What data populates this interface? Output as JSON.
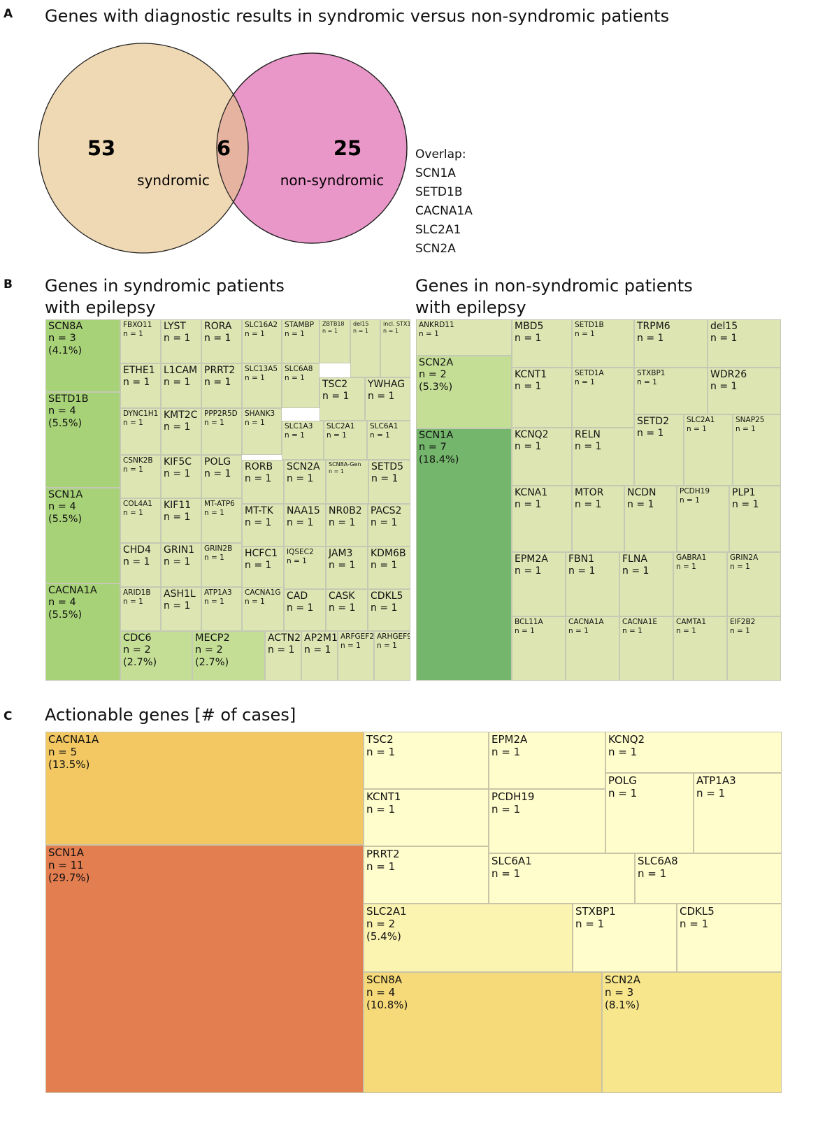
{
  "panels": {
    "a": {
      "letter": "A",
      "title": "Genes with diagnostic results in syndromic versus non-syndromic patients",
      "venn": {
        "left_count": "53",
        "overlap_count": "6",
        "right_count": "25",
        "left_label": "syndromic",
        "right_label": "non-syndromic",
        "left_color": "#efd8b4",
        "right_color": "#e996c8",
        "overlap_color": "#e6b3a0"
      },
      "overlap_title": "Overlap:",
      "overlap_genes": [
        "SCN1A",
        "SETD1B",
        "CACNA1A",
        "SLC2A1",
        "SCN2A"
      ]
    },
    "b": {
      "letter": "B",
      "left_title": "Genes in syndromic patients\nwith epilepsy",
      "right_title": "Genes in non-syndromic patients\nwith epilepsy"
    },
    "c": {
      "letter": "C",
      "title": "Actionable genes [# of cases]"
    }
  },
  "colors": {
    "light_green": "#dde6b3",
    "mid_green": "#a8d277",
    "mid_green2": "#c4de96",
    "dark_green": "#74b66b",
    "pale_yellow": "#fffdcc",
    "yellow": "#fbf3b0",
    "yellow_mid": "#f8e68d",
    "yellow_gold": "#f6d978",
    "orange": "#f3c862",
    "red_orange": "#e37e50"
  },
  "treemaps": {
    "syndromic": [
      {
        "gene": "SCN8A",
        "n": "n = 3",
        "pct": "(4.1%)",
        "tone": "mid_green"
      },
      {
        "gene": "SETD1B",
        "n": "n = 4",
        "pct": "(5.5%)",
        "tone": "mid_green"
      },
      {
        "gene": "SCN1A",
        "n": "n = 4",
        "pct": "(5.5%)",
        "tone": "mid_green"
      },
      {
        "gene": "CACNA1A",
        "n": "n = 4",
        "pct": "(5.5%)",
        "tone": "mid_green"
      },
      {
        "gene": "FBXO11",
        "n": "n = 1"
      },
      {
        "gene": "LYST",
        "n": "n = 1"
      },
      {
        "gene": "RORA",
        "n": "n = 1"
      },
      {
        "gene": "SLC16A2",
        "n": "n = 1"
      },
      {
        "gene": "STAMBP",
        "n": "n = 1"
      },
      {
        "gene": "ZBTB18",
        "n": "n = 1"
      },
      {
        "gene": "del15",
        "n": "n = 1"
      },
      {
        "gene": "incl. STX1B",
        "n": "n = 1"
      },
      {
        "gene": "ETHE1",
        "n": "n = 1"
      },
      {
        "gene": "L1CAM",
        "n": "n = 1"
      },
      {
        "gene": "PRRT2",
        "n": "n = 1"
      },
      {
        "gene": "SLC13A5",
        "n": "n = 1"
      },
      {
        "gene": "SLC6A8",
        "n": "n = 1"
      },
      {
        "gene": "TSC2",
        "n": "n = 1"
      },
      {
        "gene": "YWHAG",
        "n": "n = 1"
      },
      {
        "gene": "DYNC1H1",
        "n": "n = 1"
      },
      {
        "gene": "KMT2C",
        "n": "n = 1"
      },
      {
        "gene": "PPP2R5D",
        "n": "n = 1"
      },
      {
        "gene": "SHANK3",
        "n": "n = 1"
      },
      {
        "gene": "SLC1A3",
        "n": "n = 1"
      },
      {
        "gene": "SLC2A1",
        "n": "n = 1"
      },
      {
        "gene": "SLC6A1",
        "n": "n = 1"
      },
      {
        "gene": "CSNK2B",
        "n": "n = 1"
      },
      {
        "gene": "KIF5C",
        "n": "n = 1"
      },
      {
        "gene": "POLG",
        "n": "n = 1"
      },
      {
        "gene": "RORB",
        "n": "n = 1"
      },
      {
        "gene": "SCN2A",
        "n": "n = 1"
      },
      {
        "gene": "SCN8A-Gen",
        "n": "n = 1"
      },
      {
        "gene": "SETD5",
        "n": "n = 1"
      },
      {
        "gene": "COL4A1",
        "n": "n = 1"
      },
      {
        "gene": "KIF11",
        "n": "n = 1"
      },
      {
        "gene": "MT-ATP6",
        "n": "n = 1"
      },
      {
        "gene": "MT-TK",
        "n": "n = 1"
      },
      {
        "gene": "NAA15",
        "n": "n = 1"
      },
      {
        "gene": "NR0B2",
        "n": "n = 1"
      },
      {
        "gene": "PACS2",
        "n": "n = 1"
      },
      {
        "gene": "CHD4",
        "n": "n = 1"
      },
      {
        "gene": "GRIN1",
        "n": "n = 1"
      },
      {
        "gene": "GRIN2B",
        "n": "n = 1"
      },
      {
        "gene": "HCFC1",
        "n": "n = 1"
      },
      {
        "gene": "IQSEC2",
        "n": "n = 1"
      },
      {
        "gene": "JAM3",
        "n": "n = 1"
      },
      {
        "gene": "KDM6B",
        "n": "n = 1"
      },
      {
        "gene": "ARID1B",
        "n": "n = 1"
      },
      {
        "gene": "ASH1L",
        "n": "n = 1"
      },
      {
        "gene": "ATP1A3",
        "n": "n = 1"
      },
      {
        "gene": "CACNA1G",
        "n": "n = 1"
      },
      {
        "gene": "CAD",
        "n": "n = 1"
      },
      {
        "gene": "CASK",
        "n": "n = 1"
      },
      {
        "gene": "CDKL5",
        "n": "n = 1"
      },
      {
        "gene": "CDC6",
        "n": "n = 2",
        "pct": "(2.7%)",
        "tone": "mid_green2"
      },
      {
        "gene": "MECP2",
        "n": "n = 2",
        "pct": "(2.7%)",
        "tone": "mid_green2"
      },
      {
        "gene": "ACTN2",
        "n": "n = 1"
      },
      {
        "gene": "AP2M1",
        "n": "n = 1"
      },
      {
        "gene": "ARFGEF2",
        "n": "n = 1"
      },
      {
        "gene": "ARHGEF9",
        "n": "n = 1"
      }
    ],
    "nonsyndromic": [
      {
        "gene": "ANKRD11",
        "n": "n = 1"
      },
      {
        "gene": "SCN2A",
        "n": "n = 2",
        "pct": "(5.3%)",
        "tone": "mid_green2"
      },
      {
        "gene": "SCN1A",
        "n": "n = 7",
        "pct": "(18.4%)",
        "tone": "dark_green"
      },
      {
        "gene": "MBD5",
        "n": "n = 1"
      },
      {
        "gene": "SETD1B",
        "n": "n = 1"
      },
      {
        "gene": "TRPM6",
        "n": "n = 1"
      },
      {
        "gene": "del15",
        "n": "n = 1"
      },
      {
        "gene": "KCNT1",
        "n": "n = 1"
      },
      {
        "gene": "SETD1A",
        "n": "n = 1"
      },
      {
        "gene": "STXBP1",
        "n": "n = 1"
      },
      {
        "gene": "WDR26",
        "n": "n = 1"
      },
      {
        "gene": "KCNQ2",
        "n": "n = 1"
      },
      {
        "gene": "RELN",
        "n": "n = 1"
      },
      {
        "gene": "SETD2",
        "n": "n = 1"
      },
      {
        "gene": "SLC2A1",
        "n": "n = 1"
      },
      {
        "gene": "SNAP25",
        "n": "n = 1"
      },
      {
        "gene": "KCNA1",
        "n": "n = 1"
      },
      {
        "gene": "MTOR",
        "n": "n = 1"
      },
      {
        "gene": "NCDN",
        "n": "n = 1"
      },
      {
        "gene": "PCDH19",
        "n": "n = 1"
      },
      {
        "gene": "PLP1",
        "n": "n = 1"
      },
      {
        "gene": "EPM2A",
        "n": "n = 1"
      },
      {
        "gene": "FBN1",
        "n": "n = 1"
      },
      {
        "gene": "FLNA",
        "n": "n = 1"
      },
      {
        "gene": "GABRA1",
        "n": "n = 1"
      },
      {
        "gene": "GRIN2A",
        "n": "n = 1"
      },
      {
        "gene": "BCL11A",
        "n": "n = 1"
      },
      {
        "gene": "CACNA1A",
        "n": "n = 1"
      },
      {
        "gene": "CACNA1E",
        "n": "n = 1"
      },
      {
        "gene": "CAMTA1",
        "n": "n = 1"
      },
      {
        "gene": "EIF2B2",
        "n": "n = 1"
      }
    ],
    "actionable": [
      {
        "gene": "CACNA1A",
        "n": "n = 5",
        "pct": "(13.5%)",
        "tone": "orange"
      },
      {
        "gene": "SCN1A",
        "n": "n = 11",
        "pct": "(29.7%)",
        "tone": "red_orange"
      },
      {
        "gene": "TSC2",
        "n": "n = 1"
      },
      {
        "gene": "EPM2A",
        "n": "n = 1"
      },
      {
        "gene": "KCNQ2",
        "n": "n = 1"
      },
      {
        "gene": "KCNT1",
        "n": "n = 1"
      },
      {
        "gene": "PCDH19",
        "n": "n = 1"
      },
      {
        "gene": "POLG",
        "n": "n = 1"
      },
      {
        "gene": "ATP1A3",
        "n": "n = 1"
      },
      {
        "gene": "PRRT2",
        "n": "n = 1"
      },
      {
        "gene": "SLC6A1",
        "n": "n = 1"
      },
      {
        "gene": "SLC6A8",
        "n": "n = 1"
      },
      {
        "gene": "SLC2A1",
        "n": "n = 2",
        "pct": "(5.4%)",
        "tone": "yellow"
      },
      {
        "gene": "STXBP1",
        "n": "n = 1"
      },
      {
        "gene": "CDKL5",
        "n": "n = 1"
      },
      {
        "gene": "SCN8A",
        "n": "n = 4",
        "pct": "(10.8%)",
        "tone": "yellow_gold"
      },
      {
        "gene": "SCN2A",
        "n": "n = 3",
        "pct": "(8.1%)",
        "tone": "yellow_mid"
      }
    ]
  }
}
